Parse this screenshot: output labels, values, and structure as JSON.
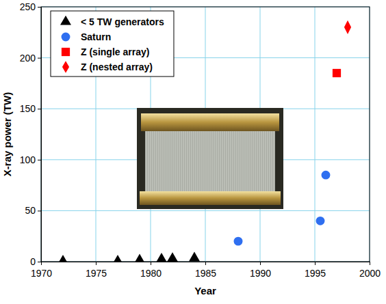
{
  "chart_data": {
    "type": "scatter",
    "x_label": "Year",
    "y_label": "X-ray power (TW)",
    "xlim": [
      1970,
      2000
    ],
    "xticks": [
      1970,
      1975,
      1980,
      1985,
      1990,
      1995,
      2000
    ],
    "ylim": [
      0,
      250
    ],
    "yticks": [
      0,
      50,
      100,
      150,
      200,
      250
    ],
    "grid": true,
    "legend": "upper left",
    "series": [
      {
        "name": "< 5 TW generators",
        "color": "#000000",
        "marker": "triangle",
        "x": [
          1972,
          1977,
          1979,
          1981,
          1982,
          1984
        ],
        "values": [
          0.5,
          0.5,
          1.5,
          2.5,
          3,
          3.5
        ]
      },
      {
        "name": "Saturn",
        "color": "#2f6ff0",
        "marker": "circle",
        "x": [
          1988,
          1995.5,
          1996
        ],
        "values": [
          20,
          40,
          85
        ]
      },
      {
        "name": "Z (single array)",
        "color": "#ff0000",
        "marker": "square",
        "x": [
          1997
        ],
        "values": [
          185
        ]
      },
      {
        "name": "Z (nested array)",
        "color": "#ff0000",
        "marker": "diamond",
        "x": [
          1998
        ],
        "values": [
          230
        ]
      }
    ]
  }
}
